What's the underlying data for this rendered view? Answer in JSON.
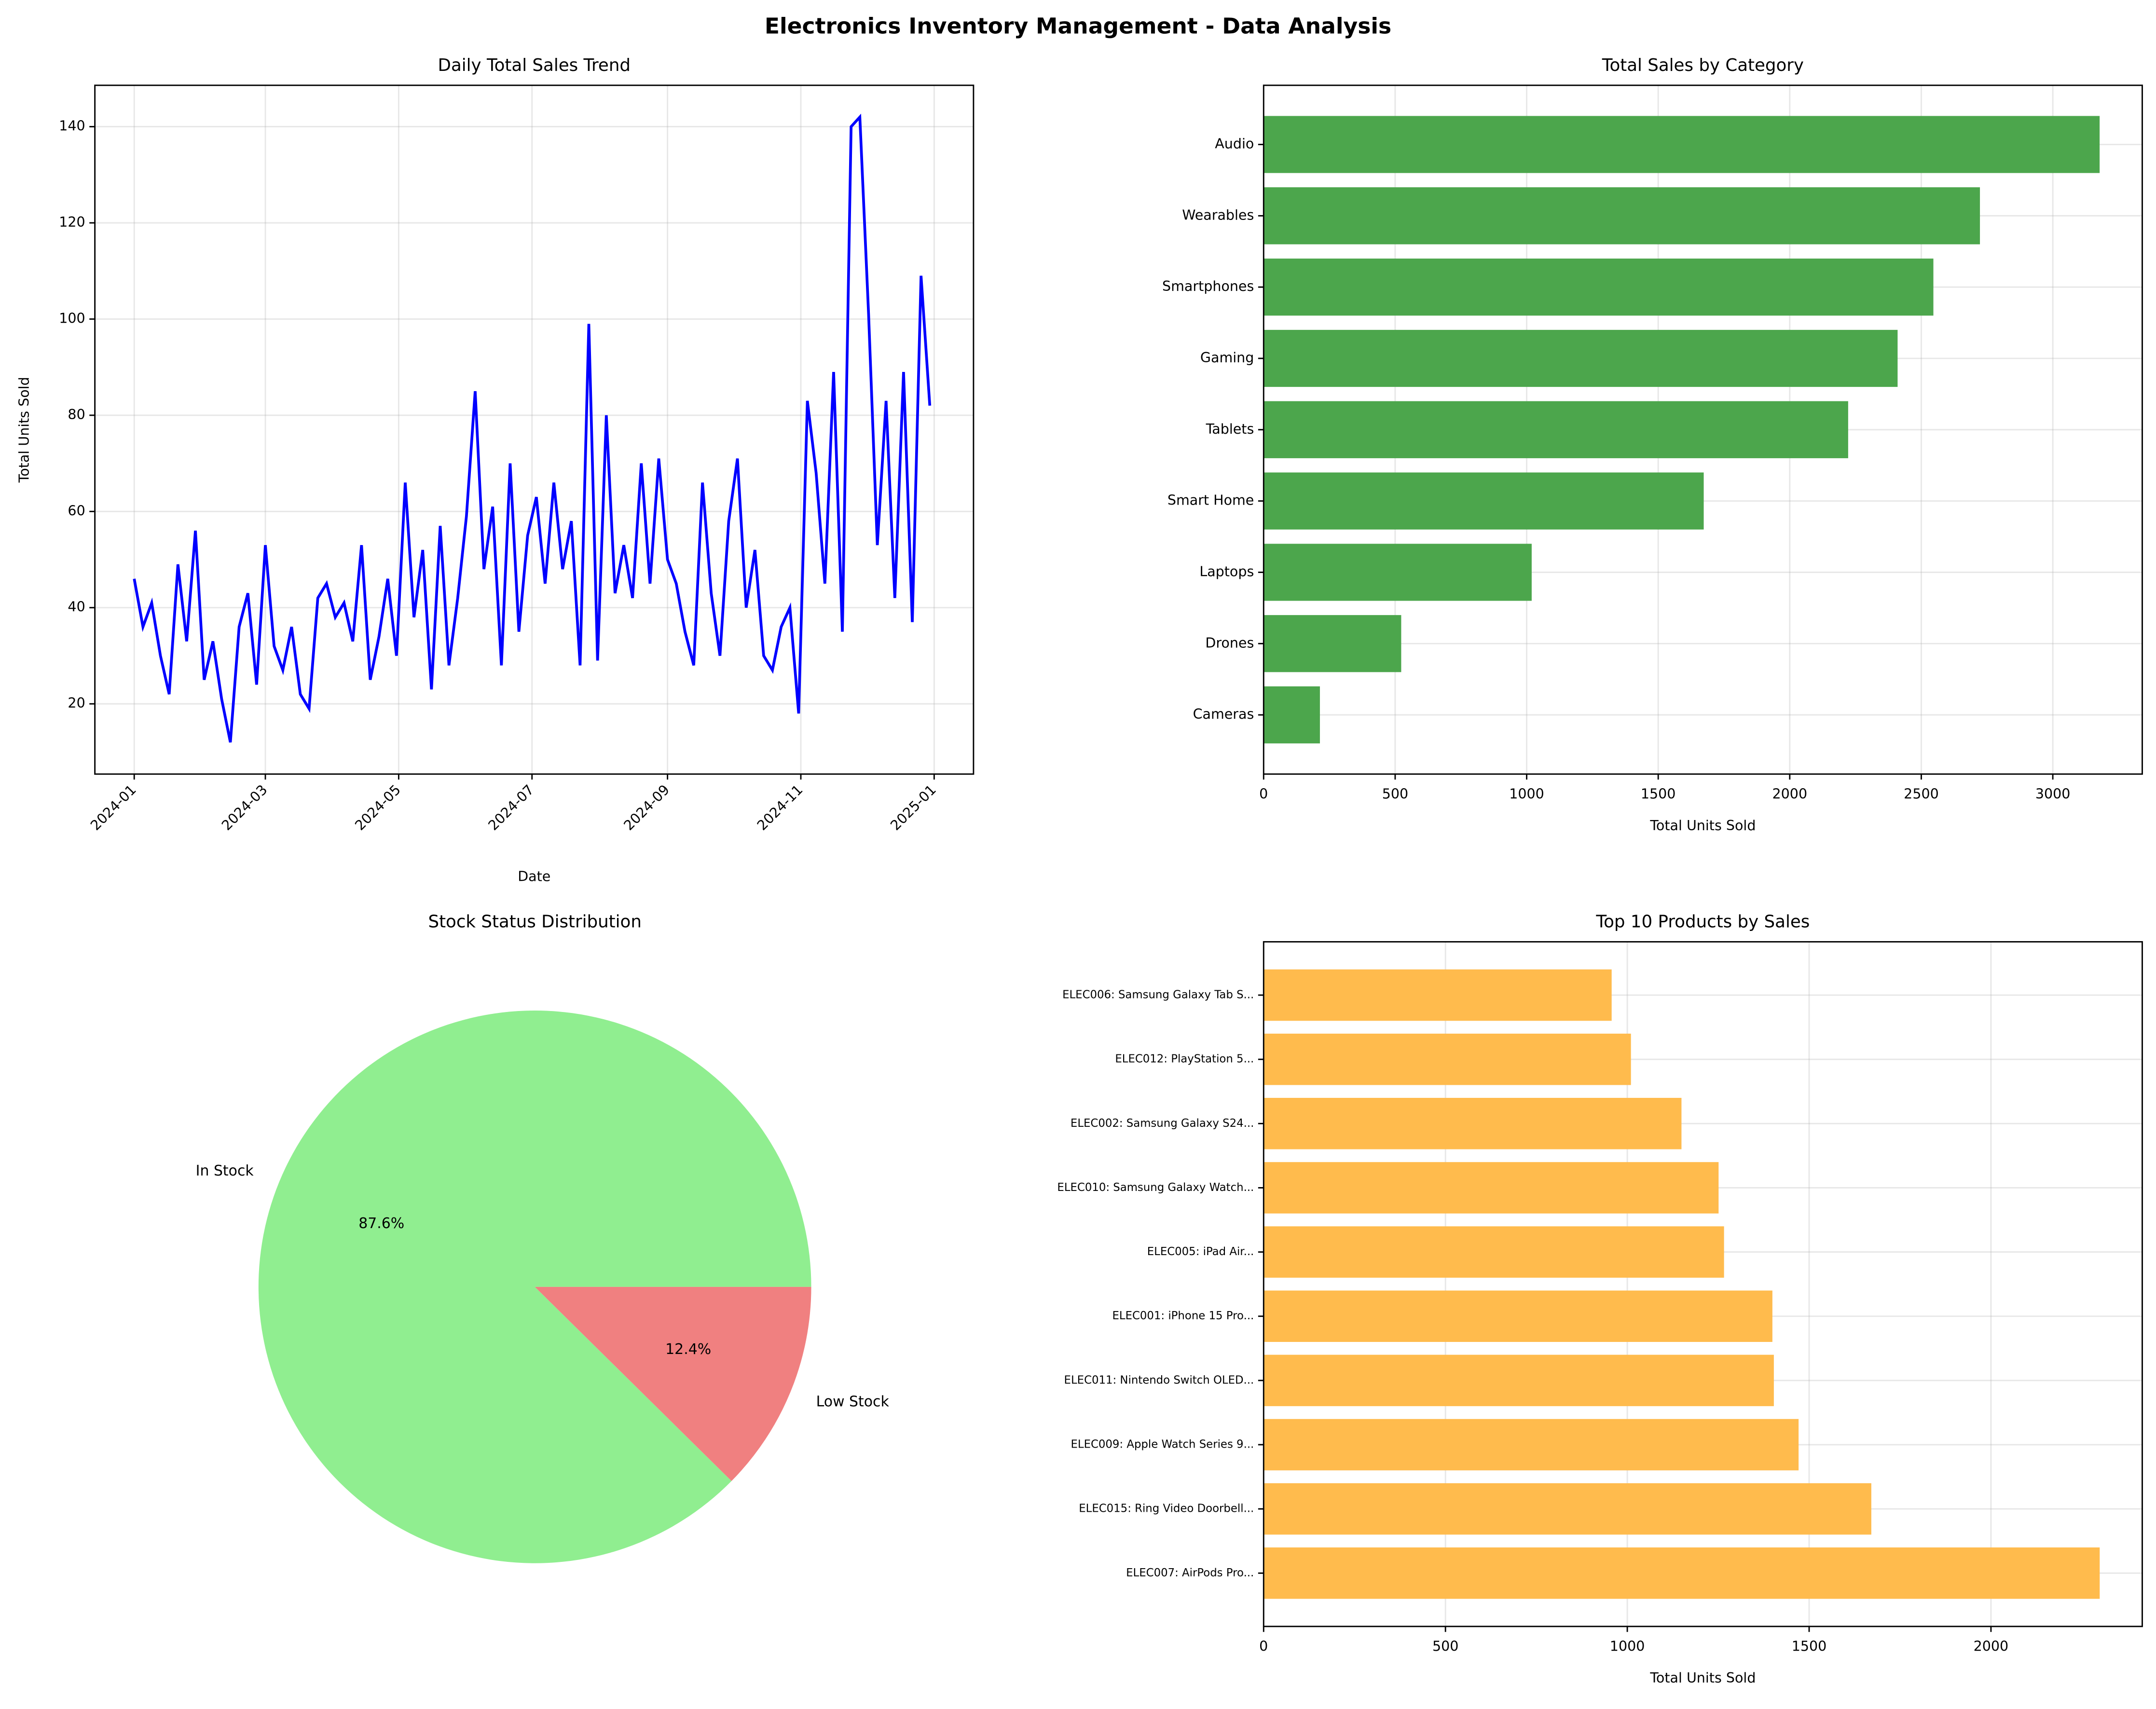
{
  "title": "Electronics Inventory Management - Data Analysis",
  "chart_data": [
    {
      "type": "line",
      "title": "Daily Total Sales Trend",
      "xlabel": "Date",
      "ylabel": "Total Units Sold",
      "color": "#0000ff",
      "grid": true,
      "x": [
        "2024-01-01",
        "2024-01-05",
        "2024-01-09",
        "2024-01-13",
        "2024-01-17",
        "2024-01-21",
        "2024-01-25",
        "2024-01-29",
        "2024-02-02",
        "2024-02-06",
        "2024-02-10",
        "2024-02-14",
        "2024-02-18",
        "2024-02-22",
        "2024-02-26",
        "2024-03-01",
        "2024-03-05",
        "2024-03-09",
        "2024-03-13",
        "2024-03-17",
        "2024-03-21",
        "2024-03-25",
        "2024-03-29",
        "2024-04-02",
        "2024-04-06",
        "2024-04-10",
        "2024-04-14",
        "2024-04-18",
        "2024-04-22",
        "2024-04-26",
        "2024-04-30",
        "2024-05-04",
        "2024-05-08",
        "2024-05-12",
        "2024-05-16",
        "2024-05-20",
        "2024-05-24",
        "2024-05-28",
        "2024-06-01",
        "2024-06-05",
        "2024-06-09",
        "2024-06-13",
        "2024-06-17",
        "2024-06-21",
        "2024-06-25",
        "2024-06-29",
        "2024-07-03",
        "2024-07-07",
        "2024-07-11",
        "2024-07-15",
        "2024-07-19",
        "2024-07-23",
        "2024-07-27",
        "2024-07-31",
        "2024-08-04",
        "2024-08-08",
        "2024-08-12",
        "2024-08-16",
        "2024-08-20",
        "2024-08-24",
        "2024-08-28",
        "2024-09-01",
        "2024-09-05",
        "2024-09-09",
        "2024-09-13",
        "2024-09-17",
        "2024-09-21",
        "2024-09-25",
        "2024-09-29",
        "2024-10-03",
        "2024-10-07",
        "2024-10-11",
        "2024-10-15",
        "2024-10-19",
        "2024-10-23",
        "2024-10-27",
        "2024-10-31",
        "2024-11-04",
        "2024-11-08",
        "2024-11-12",
        "2024-11-16",
        "2024-11-20",
        "2024-11-24",
        "2024-11-28",
        "2024-12-02",
        "2024-12-06",
        "2024-12-10",
        "2024-12-14",
        "2024-12-18",
        "2024-12-22",
        "2024-12-26",
        "2024-12-30"
      ],
      "values": [
        46,
        36,
        41,
        30,
        22,
        49,
        33,
        56,
        25,
        33,
        21,
        12,
        36,
        43,
        24,
        53,
        32,
        27,
        36,
        22,
        19,
        42,
        45,
        38,
        41,
        33,
        53,
        25,
        34,
        46,
        30,
        66,
        38,
        52,
        23,
        57,
        28,
        42,
        59,
        85,
        48,
        61,
        28,
        70,
        35,
        55,
        63,
        45,
        66,
        48,
        58,
        28,
        99,
        29,
        80,
        43,
        53,
        42,
        70,
        45,
        71,
        50,
        45,
        35,
        28,
        66,
        43,
        30,
        58,
        71,
        40,
        52,
        30,
        27,
        36,
        40,
        18,
        83,
        68,
        45,
        89,
        35,
        140,
        142,
        101,
        53,
        83,
        42,
        89,
        37,
        109,
        82
      ],
      "xlim": [
        "2023-12-14",
        "2025-01-19"
      ],
      "xticks": [
        "2024-01",
        "2024-03",
        "2024-05",
        "2024-07",
        "2024-09",
        "2024-11",
        "2025-01"
      ],
      "ylim": [
        5.4,
        148.6
      ],
      "yticks": [
        20,
        40,
        60,
        80,
        100,
        120,
        140
      ]
    },
    {
      "type": "barh",
      "title": "Total Sales by Category",
      "xlabel": "Total Units Sold",
      "color": "#4ca64c",
      "grid": true,
      "categories": [
        "Audio",
        "Wearables",
        "Smartphones",
        "Gaming",
        "Tablets",
        "Smart Home",
        "Laptops",
        "Drones",
        "Cameras"
      ],
      "values": [
        3178,
        2723,
        2546,
        2410,
        2222,
        1673,
        1019,
        523,
        214
      ],
      "xlim": [
        0,
        3340
      ],
      "xticks": [
        0,
        500,
        1000,
        1500,
        2000,
        2500,
        3000
      ]
    },
    {
      "type": "pie",
      "title": "Stock Status Distribution",
      "categories": [
        "In Stock",
        "Low Stock"
      ],
      "values": [
        87.6,
        12.4
      ],
      "value_labels": [
        "87.6%",
        "12.4%"
      ],
      "colors": [
        "#90ee90",
        "#f08080"
      ]
    },
    {
      "type": "barh",
      "title": "Top 10 Products by Sales",
      "xlabel": "Total Units Sold",
      "color": "#ffbb4d",
      "grid": true,
      "categories": [
        "ELEC006: Samsung Galaxy Tab S...",
        "ELEC012: PlayStation 5...",
        "ELEC002: Samsung Galaxy S24...",
        "ELEC010: Samsung Galaxy Watch...",
        "ELEC005: iPad Air...",
        "ELEC001: iPhone 15 Pro...",
        "ELEC011: Nintendo Switch OLED...",
        "ELEC009: Apple Watch Series 9...",
        "ELEC015: Ring Video Doorbell...",
        "ELEC007: AirPods Pro..."
      ],
      "values": [
        957,
        1010,
        1149,
        1251,
        1266,
        1399,
        1403,
        1471,
        1671,
        2299
      ],
      "xlim": [
        0,
        2416
      ],
      "xticks": [
        0,
        500,
        1000,
        1500,
        2000
      ]
    }
  ]
}
